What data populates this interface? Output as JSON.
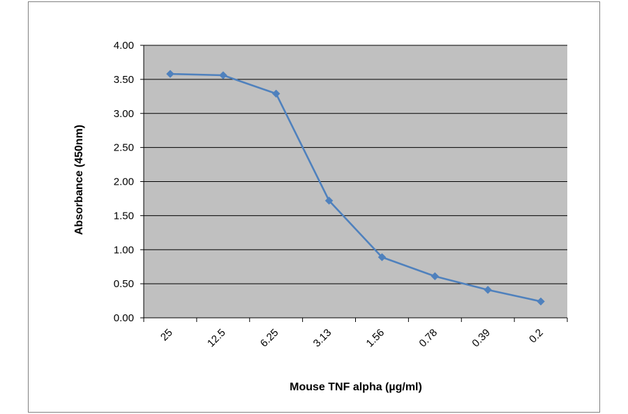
{
  "chart_data": {
    "type": "line",
    "title": "",
    "xlabel": "Mouse TNF alpha (µg/ml)",
    "ylabel": "Absorbance (450nm)",
    "categories": [
      "25",
      "12.5",
      "6.25",
      "3.13",
      "1.56",
      "0.78",
      "0.39",
      "0.2"
    ],
    "series": [
      {
        "values": [
          3.58,
          3.56,
          3.29,
          1.72,
          0.89,
          0.61,
          0.41,
          0.24
        ]
      }
    ],
    "ylim": [
      0,
      4
    ],
    "yticks": [
      "0.00",
      "0.50",
      "1.00",
      "1.50",
      "2.00",
      "2.50",
      "3.00",
      "3.50",
      "4.00"
    ],
    "grid": true,
    "legend": "none",
    "colors": {
      "line": "#4f81bd",
      "plot_background": "#c0c0c0",
      "gridline": "#000000"
    }
  }
}
